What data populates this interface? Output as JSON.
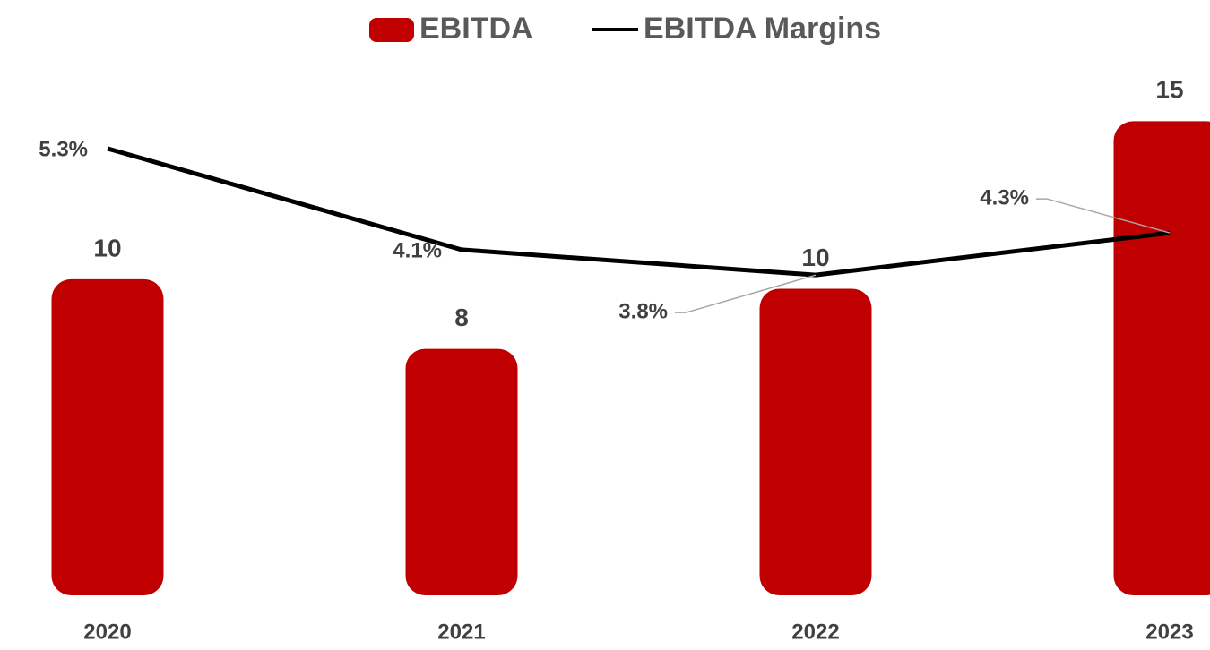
{
  "chart_data": {
    "type": "bar+line",
    "categories": [
      "2020",
      "2021",
      "2022",
      "2023"
    ],
    "series": [
      {
        "name": "EBITDA",
        "type": "bar",
        "color": "#c00000",
        "values": [
          10,
          7.8,
          9.7,
          15
        ],
        "value_labels": [
          "10",
          "8",
          "10",
          "15"
        ]
      },
      {
        "name": "EBITDA Margins",
        "type": "line",
        "axis": "y2",
        "color": "#000000",
        "values": [
          5.3,
          4.1,
          3.8,
          4.3
        ],
        "value_labels": [
          "5.3%",
          "4.1%",
          "3.8%",
          "4.3%"
        ]
      }
    ],
    "ylim": [
      0,
      16
    ],
    "y2lim": [
      0,
      6
    ],
    "legend": "top"
  }
}
